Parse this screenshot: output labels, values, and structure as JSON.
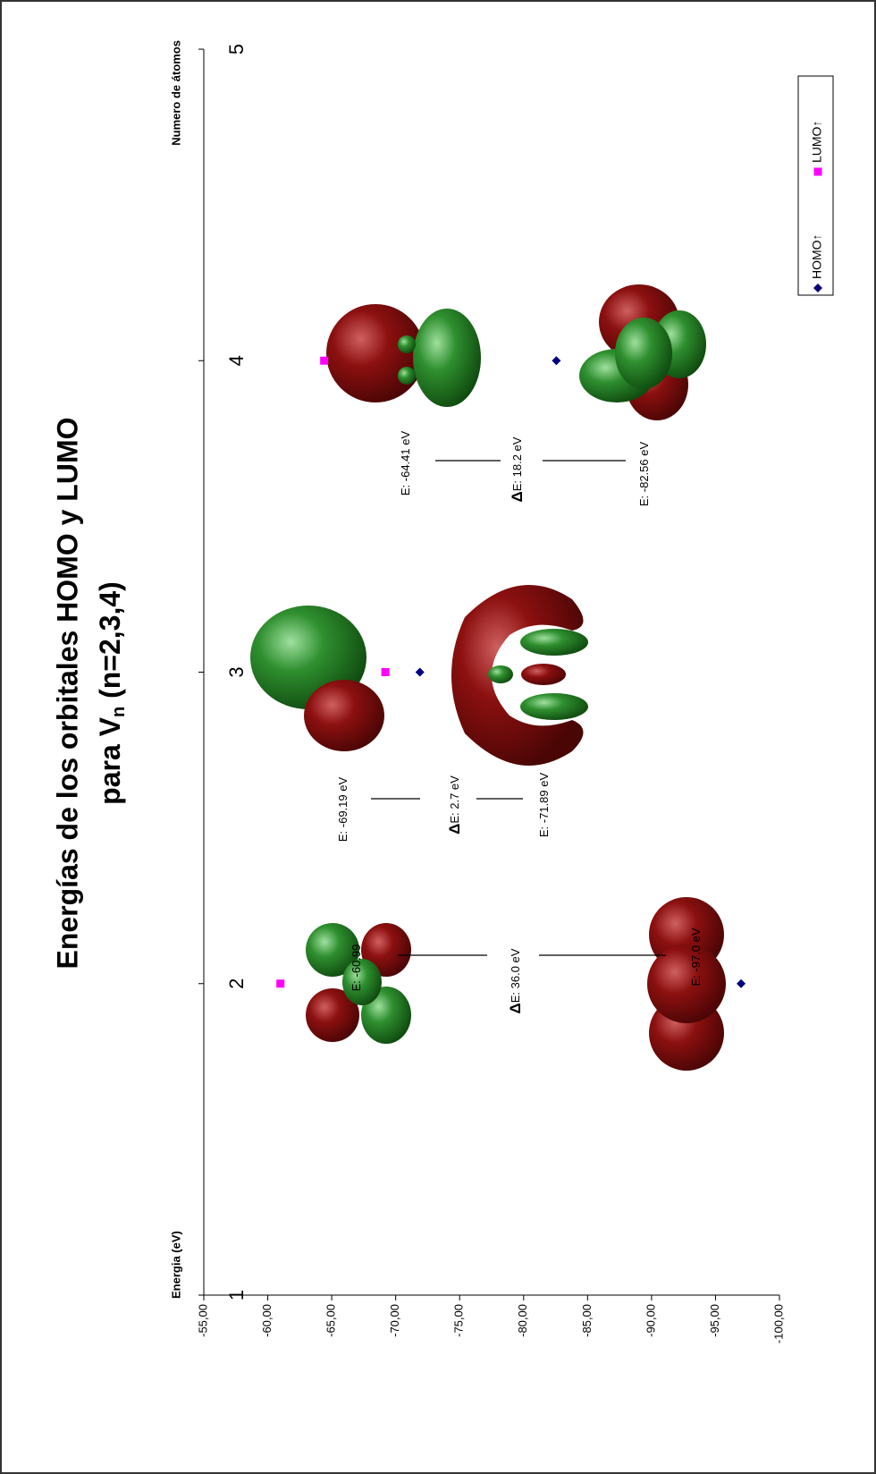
{
  "chart_data": {
    "type": "scatter",
    "title": [
      "Energías de los orbitales HOMO y LUMO",
      {
        "before": "para V",
        "sub": "n",
        "after": " (n=2,3,4)"
      }
    ],
    "x_label": "Numero de átomos",
    "y_label": "Energia (eV)",
    "x": [
      2,
      3,
      4
    ],
    "xlim": [
      1,
      5
    ],
    "xticks": [
      1,
      2,
      3,
      4,
      5
    ],
    "ylim": [
      -55,
      -100
    ],
    "yticks": [
      {
        "value": -55,
        "label": "-55,00"
      },
      {
        "value": -60,
        "label": "-60,00"
      },
      {
        "value": -65,
        "label": "-65,00"
      },
      {
        "value": -70,
        "label": "-70,00"
      },
      {
        "value": -75,
        "label": "-75,00"
      },
      {
        "value": -80,
        "label": "-80,00"
      },
      {
        "value": -85,
        "label": "-85,00"
      },
      {
        "value": -90,
        "label": "-90,00"
      },
      {
        "value": -95,
        "label": "-95,00"
      },
      {
        "value": -100,
        "label": "-100,00"
      }
    ],
    "series": [
      {
        "name": "HOMO↑",
        "color": "#000080",
        "marker": "diamond",
        "values": [
          -97.0,
          -71.89,
          -82.56
        ]
      },
      {
        "name": "LUMO↑",
        "color": "#ff00ff",
        "marker": "square",
        "values": [
          -60.99,
          -69.19,
          -64.41
        ]
      }
    ],
    "annotations": [
      {
        "text": "E: -60.99"
      },
      {
        "delta": "Δ",
        "text": "E: 36.0 eV"
      },
      {
        "text": "E: -97.0 eV"
      },
      {
        "text": "E: -69.19 eV"
      },
      {
        "delta": "Δ",
        "text": "E: 2.7 eV"
      },
      {
        "text": "E: -71.89 eV"
      },
      {
        "text": "E: -64.41 eV"
      },
      {
        "delta": "Δ",
        "text": "E: 18.2 eV"
      },
      {
        "text": "E: -82.56 eV"
      }
    ]
  }
}
